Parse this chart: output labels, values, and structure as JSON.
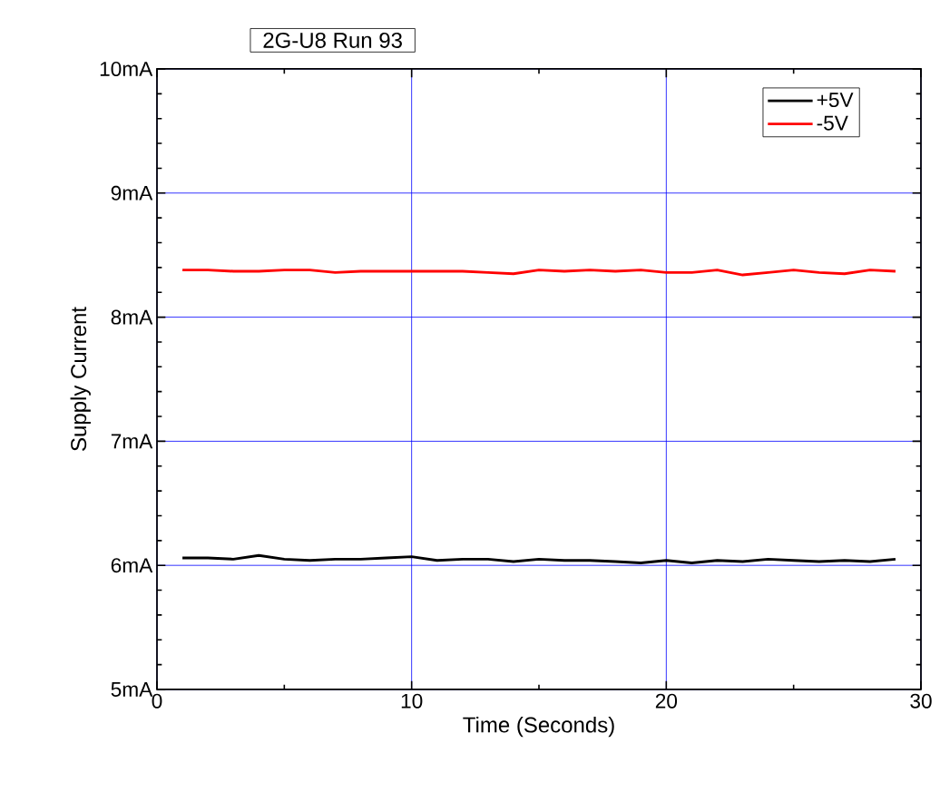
{
  "chart_data": {
    "type": "line",
    "title": "2G-U8 Run 93",
    "xlabel": "Time (Seconds)",
    "ylabel": "Supply Current",
    "x": [
      1,
      2,
      3,
      4,
      5,
      6,
      7,
      8,
      9,
      10,
      11,
      12,
      13,
      14,
      15,
      16,
      17,
      18,
      19,
      20,
      21,
      22,
      23,
      24,
      25,
      26,
      27,
      28,
      29
    ],
    "series": [
      {
        "name": "+5V",
        "color": "#000000",
        "values": [
          6.06,
          6.06,
          6.05,
          6.08,
          6.05,
          6.04,
          6.05,
          6.05,
          6.06,
          6.07,
          6.04,
          6.05,
          6.05,
          6.03,
          6.05,
          6.04,
          6.04,
          6.03,
          6.02,
          6.04,
          6.02,
          6.04,
          6.03,
          6.05,
          6.04,
          6.03,
          6.04,
          6.03,
          6.05
        ]
      },
      {
        "name": "-5V",
        "color": "#ff0000",
        "values": [
          8.38,
          8.38,
          8.37,
          8.37,
          8.38,
          8.38,
          8.36,
          8.37,
          8.37,
          8.37,
          8.37,
          8.37,
          8.36,
          8.35,
          8.38,
          8.37,
          8.38,
          8.37,
          8.38,
          8.36,
          8.36,
          8.38,
          8.34,
          8.36,
          8.38,
          8.36,
          8.35,
          8.38,
          8.37
        ]
      }
    ],
    "xlim": [
      0,
      30
    ],
    "xticks": [
      0,
      10,
      20,
      30
    ],
    "ylim": [
      5,
      10
    ],
    "yticks": [
      {
        "value": 5,
        "label": "5mA"
      },
      {
        "value": 6,
        "label": "6mA"
      },
      {
        "value": 7,
        "label": "7mA"
      },
      {
        "value": 8,
        "label": "8mA"
      },
      {
        "value": 9,
        "label": "9mA"
      },
      {
        "value": 10,
        "label": "10mA"
      }
    ],
    "grid": true,
    "legend": "top right",
    "marker": "none",
    "line_style": "solid"
  }
}
